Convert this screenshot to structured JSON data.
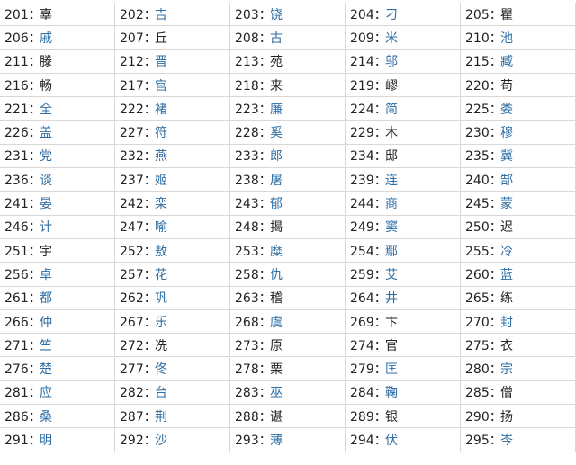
{
  "table": {
    "text_color": "#222222",
    "link_color": "#2f6ea5",
    "rows": [
      [
        {
          "num": "201：",
          "name": "辜",
          "link": false
        },
        {
          "num": "202：",
          "name": "吉",
          "link": true
        },
        {
          "num": "203：",
          "name": "饶",
          "link": true
        },
        {
          "num": "204：",
          "name": "刁",
          "link": true
        },
        {
          "num": "205：",
          "name": "瞿",
          "link": false
        }
      ],
      [
        {
          "num": "206：",
          "name": "戚",
          "link": true
        },
        {
          "num": "207：",
          "name": "丘",
          "link": false
        },
        {
          "num": "208：",
          "name": "古",
          "link": true
        },
        {
          "num": "209：",
          "name": "米",
          "link": true
        },
        {
          "num": "210：",
          "name": "池",
          "link": true
        }
      ],
      [
        {
          "num": "211：",
          "name": "滕",
          "link": false
        },
        {
          "num": "212：",
          "name": "晋",
          "link": true
        },
        {
          "num": "213：",
          "name": "苑",
          "link": false
        },
        {
          "num": "214：",
          "name": "邬",
          "link": true
        },
        {
          "num": "215：",
          "name": "臧",
          "link": true
        }
      ],
      [
        {
          "num": "216：",
          "name": "畅",
          "link": false
        },
        {
          "num": "217：",
          "name": "宫",
          "link": true
        },
        {
          "num": "218：",
          "name": "来",
          "link": false
        },
        {
          "num": "219：",
          "name": "嵺",
          "link": false
        },
        {
          "num": "220：",
          "name": "苟",
          "link": false
        }
      ],
      [
        {
          "num": "221：",
          "name": "全",
          "link": true
        },
        {
          "num": "222：",
          "name": "褚",
          "link": true
        },
        {
          "num": "223：",
          "name": "廉",
          "link": true
        },
        {
          "num": "224：",
          "name": "简",
          "link": true
        },
        {
          "num": "225：",
          "name": "娄",
          "link": true
        }
      ],
      [
        {
          "num": "226：",
          "name": "盖",
          "link": true
        },
        {
          "num": "227：",
          "name": "符",
          "link": true
        },
        {
          "num": "228：",
          "name": "奚",
          "link": true
        },
        {
          "num": "229：",
          "name": "木",
          "link": false
        },
        {
          "num": "230：",
          "name": "穆",
          "link": true
        }
      ],
      [
        {
          "num": "231：",
          "name": "党",
          "link": true
        },
        {
          "num": "232：",
          "name": "燕",
          "link": true
        },
        {
          "num": "233：",
          "name": "郎",
          "link": true
        },
        {
          "num": "234：",
          "name": "邸",
          "link": false
        },
        {
          "num": "235：",
          "name": "冀",
          "link": true
        }
      ],
      [
        {
          "num": "236：",
          "name": "谈",
          "link": true
        },
        {
          "num": "237：",
          "name": "姬",
          "link": true
        },
        {
          "num": "238：",
          "name": "屠",
          "link": true
        },
        {
          "num": "239：",
          "name": "连",
          "link": true
        },
        {
          "num": "240：",
          "name": "郜",
          "link": true
        }
      ],
      [
        {
          "num": "241：",
          "name": "晏",
          "link": true
        },
        {
          "num": "242：",
          "name": "栾",
          "link": true
        },
        {
          "num": "243：",
          "name": "郁",
          "link": true
        },
        {
          "num": "244：",
          "name": "商",
          "link": true
        },
        {
          "num": "245：",
          "name": "蒙",
          "link": true
        }
      ],
      [
        {
          "num": "246：",
          "name": "计",
          "link": true
        },
        {
          "num": "247：",
          "name": "喻",
          "link": true
        },
        {
          "num": "248：",
          "name": "揭",
          "link": false
        },
        {
          "num": "249：",
          "name": "窦",
          "link": true
        },
        {
          "num": "250：",
          "name": "迟",
          "link": false
        }
      ],
      [
        {
          "num": "251：",
          "name": "宇",
          "link": false
        },
        {
          "num": "252：",
          "name": "敖",
          "link": true
        },
        {
          "num": "253：",
          "name": "糜",
          "link": true
        },
        {
          "num": "254：",
          "name": "鄢",
          "link": true
        },
        {
          "num": "255：",
          "name": "冷",
          "link": true
        }
      ],
      [
        {
          "num": "256：",
          "name": "卓",
          "link": true
        },
        {
          "num": "257：",
          "name": "花",
          "link": true
        },
        {
          "num": "258：",
          "name": "仇",
          "link": true
        },
        {
          "num": "259：",
          "name": "艾",
          "link": true
        },
        {
          "num": "260：",
          "name": "蓝",
          "link": true
        }
      ],
      [
        {
          "num": "261：",
          "name": "都",
          "link": true
        },
        {
          "num": "262：",
          "name": "巩",
          "link": true
        },
        {
          "num": "263：",
          "name": "稽",
          "link": false
        },
        {
          "num": "264：",
          "name": "井",
          "link": true
        },
        {
          "num": "265：",
          "name": "练",
          "link": false
        }
      ],
      [
        {
          "num": "266：",
          "name": "仲",
          "link": true
        },
        {
          "num": "267：",
          "name": "乐",
          "link": true
        },
        {
          "num": "268：",
          "name": "虞",
          "link": true
        },
        {
          "num": "269：",
          "name": "卞",
          "link": false
        },
        {
          "num": "270：",
          "name": "封",
          "link": true
        }
      ],
      [
        {
          "num": "271：",
          "name": "竺",
          "link": true
        },
        {
          "num": "272：",
          "name": "冼",
          "link": false
        },
        {
          "num": "273：",
          "name": "原",
          "link": false
        },
        {
          "num": "274：",
          "name": "官",
          "link": false
        },
        {
          "num": "275：",
          "name": "衣",
          "link": false
        }
      ],
      [
        {
          "num": "276：",
          "name": "楚",
          "link": true
        },
        {
          "num": "277：",
          "name": "佟",
          "link": true
        },
        {
          "num": "278：",
          "name": "栗",
          "link": false
        },
        {
          "num": "279：",
          "name": "匡",
          "link": true
        },
        {
          "num": "280：",
          "name": "宗",
          "link": true
        }
      ],
      [
        {
          "num": "281：",
          "name": "应",
          "link": true
        },
        {
          "num": "282：",
          "name": "台",
          "link": true
        },
        {
          "num": "283：",
          "name": "巫",
          "link": true
        },
        {
          "num": "284：",
          "name": "鞠",
          "link": true
        },
        {
          "num": "285：",
          "name": "僧",
          "link": false
        }
      ],
      [
        {
          "num": "286：",
          "name": "桑",
          "link": true
        },
        {
          "num": "287：",
          "name": "荆",
          "link": true
        },
        {
          "num": "288：",
          "name": "谌",
          "link": false
        },
        {
          "num": "289：",
          "name": "银",
          "link": false
        },
        {
          "num": "290：",
          "name": "扬",
          "link": false
        }
      ],
      [
        {
          "num": "291：",
          "name": "明",
          "link": true
        },
        {
          "num": "292：",
          "name": "沙",
          "link": true
        },
        {
          "num": "293：",
          "name": "薄",
          "link": true
        },
        {
          "num": "294：",
          "name": "伏",
          "link": true
        },
        {
          "num": "295：",
          "name": "岑",
          "link": true
        }
      ]
    ]
  }
}
